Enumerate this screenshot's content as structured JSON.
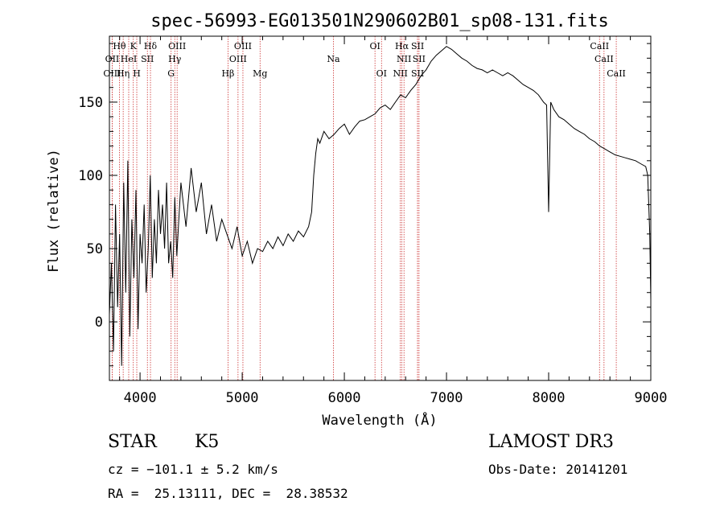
{
  "chart_data": {
    "type": "line",
    "title": "spec-56993-EG013501N290602B01_sp08-131.fits",
    "xlabel": "Wavelength (Å)",
    "ylabel": "Flux (relative)",
    "xlim": [
      3700,
      9000
    ],
    "ylim": [
      -40,
      195
    ],
    "x_ticks": [
      4000,
      5000,
      6000,
      7000,
      8000,
      9000
    ],
    "y_ticks": [
      0,
      50,
      100,
      150
    ],
    "grid": false,
    "line_color": "#000000",
    "marker_color": "#cc3333",
    "series": [
      {
        "x": [
          3700,
          3720,
          3740,
          3760,
          3780,
          3800,
          3820,
          3840,
          3860,
          3880,
          3900,
          3920,
          3940,
          3960,
          3980,
          4000,
          4020,
          4040,
          4060,
          4080,
          4100,
          4120,
          4140,
          4160,
          4180,
          4200,
          4220,
          4240,
          4260,
          4280,
          4300,
          4320,
          4340,
          4360,
          4380,
          4400,
          4450,
          4500,
          4550,
          4600,
          4650,
          4700,
          4750,
          4800,
          4850,
          4900,
          4950,
          5000,
          5050,
          5100,
          5150,
          5200,
          5250,
          5300,
          5350,
          5400,
          5450,
          5500,
          5550,
          5600,
          5650,
          5680,
          5700,
          5720,
          5740,
          5760,
          5800,
          5850,
          5900,
          5950,
          6000,
          6050,
          6100,
          6150,
          6200,
          6250,
          6300,
          6350,
          6400,
          6450,
          6500,
          6550,
          6600,
          6650,
          6700,
          6750,
          6800,
          6850,
          6900,
          6950,
          7000,
          7050,
          7100,
          7150,
          7200,
          7250,
          7300,
          7350,
          7400,
          7450,
          7500,
          7550,
          7600,
          7650,
          7700,
          7750,
          7800,
          7850,
          7900,
          7950,
          7980,
          8000,
          8020,
          8050,
          8100,
          8150,
          8200,
          8250,
          8300,
          8350,
          8400,
          8450,
          8500,
          8550,
          8600,
          8650,
          8700,
          8750,
          8800,
          8850,
          8900,
          8950,
          8970,
          8990,
          9000
        ],
        "y": [
          5,
          40,
          -20,
          80,
          10,
          60,
          -30,
          95,
          20,
          110,
          -10,
          70,
          30,
          90,
          -5,
          60,
          40,
          80,
          20,
          50,
          100,
          30,
          70,
          40,
          90,
          60,
          80,
          50,
          95,
          40,
          55,
          30,
          85,
          45,
          70,
          95,
          65,
          105,
          75,
          95,
          60,
          80,
          55,
          70,
          60,
          50,
          65,
          45,
          55,
          40,
          50,
          48,
          55,
          50,
          58,
          52,
          60,
          55,
          62,
          58,
          65,
          75,
          100,
          115,
          125,
          122,
          130,
          125,
          128,
          132,
          135,
          128,
          133,
          137,
          138,
          140,
          142,
          146,
          148,
          145,
          150,
          155,
          153,
          158,
          162,
          168,
          172,
          178,
          182,
          185,
          188,
          186,
          183,
          180,
          178,
          175,
          173,
          172,
          170,
          172,
          170,
          168,
          170,
          168,
          165,
          162,
          160,
          158,
          155,
          150,
          148,
          75,
          150,
          145,
          140,
          138,
          135,
          132,
          130,
          128,
          125,
          123,
          120,
          118,
          116,
          114,
          113,
          112,
          111,
          110,
          108,
          106,
          100,
          60,
          15
        ]
      }
    ],
    "spectral_lines": [
      {
        "label": "Hθ",
        "wl": 3798,
        "row": 1
      },
      {
        "label": "K",
        "wl": 3934,
        "row": 1
      },
      {
        "label": "Hδ",
        "wl": 4102,
        "row": 1
      },
      {
        "label": "OIII",
        "wl": 4363,
        "row": 1
      },
      {
        "label": "OIII",
        "wl": 5007,
        "row": 1
      },
      {
        "label": "OI",
        "wl": 6300,
        "row": 1
      },
      {
        "label": "Hα",
        "wl": 6563,
        "row": 1
      },
      {
        "label": "SII",
        "wl": 6717,
        "row": 1
      },
      {
        "label": "CaII",
        "wl": 8498,
        "row": 1
      },
      {
        "label": "OII",
        "wl": 3727,
        "row": 2
      },
      {
        "label": "HeI",
        "wl": 3889,
        "row": 2
      },
      {
        "label": "SII",
        "wl": 4072,
        "row": 2
      },
      {
        "label": "Hγ",
        "wl": 4340,
        "row": 2
      },
      {
        "label": "OIII",
        "wl": 4959,
        "row": 2
      },
      {
        "label": "Na",
        "wl": 5893,
        "row": 2
      },
      {
        "label": "NII",
        "wl": 6584,
        "row": 2
      },
      {
        "label": "SII",
        "wl": 6731,
        "row": 2
      },
      {
        "label": "CaII",
        "wl": 8542,
        "row": 2
      },
      {
        "label": "OIII",
        "wl": 3727,
        "row": 3
      },
      {
        "label": "Hη",
        "wl": 3835,
        "row": 3
      },
      {
        "label": "H",
        "wl": 3968,
        "row": 3
      },
      {
        "label": "G",
        "wl": 4304,
        "row": 3
      },
      {
        "label": "Hβ",
        "wl": 4861,
        "row": 3
      },
      {
        "label": "Mg",
        "wl": 5175,
        "row": 3
      },
      {
        "label": "OI",
        "wl": 6364,
        "row": 3
      },
      {
        "label": "NII",
        "wl": 6548,
        "row": 3
      },
      {
        "label": "SII",
        "wl": 6717,
        "row": 3
      },
      {
        "label": "CaII",
        "wl": 8662,
        "row": 3
      }
    ]
  },
  "info": {
    "class": "STAR",
    "subclass": "K5",
    "survey": "LAMOST DR3",
    "cz": "cz = −101.1 ± 5.2 km/s",
    "obs_date": "Obs-Date: 20141201",
    "radec": "RA =  25.13111, DEC =  28.38532"
  }
}
